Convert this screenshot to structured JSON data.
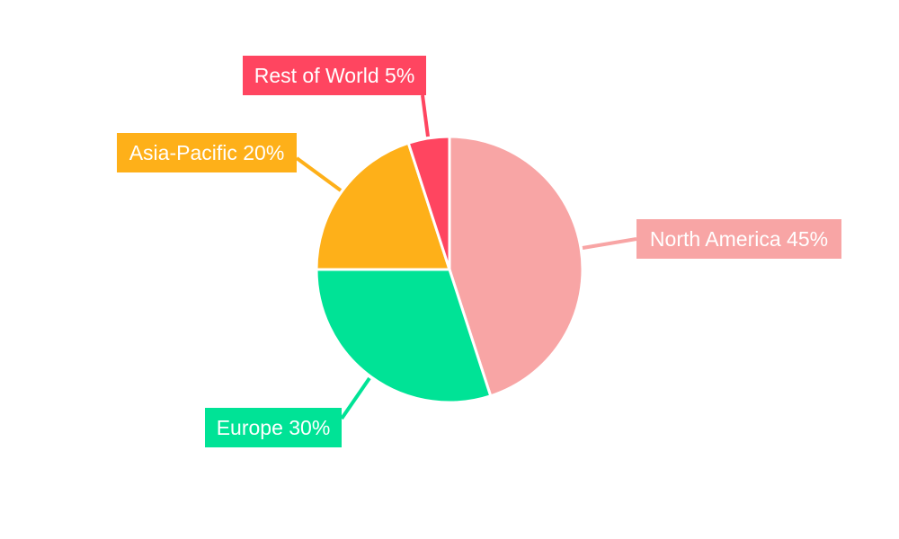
{
  "chart_data": {
    "type": "pie",
    "categories": [
      "North America",
      "Europe",
      "Asia-Pacific",
      "Rest of World"
    ],
    "values": [
      45,
      30,
      20,
      5
    ],
    "labels": [
      "North America 45%",
      "Europe 30%",
      "Asia-Pacific 20%",
      "Rest of World 5%"
    ],
    "colors": [
      "#F8A5A5",
      "#00E396",
      "#FEB019",
      "#FF4560"
    ],
    "start_angle": "top, clockwise",
    "legend": "none"
  }
}
